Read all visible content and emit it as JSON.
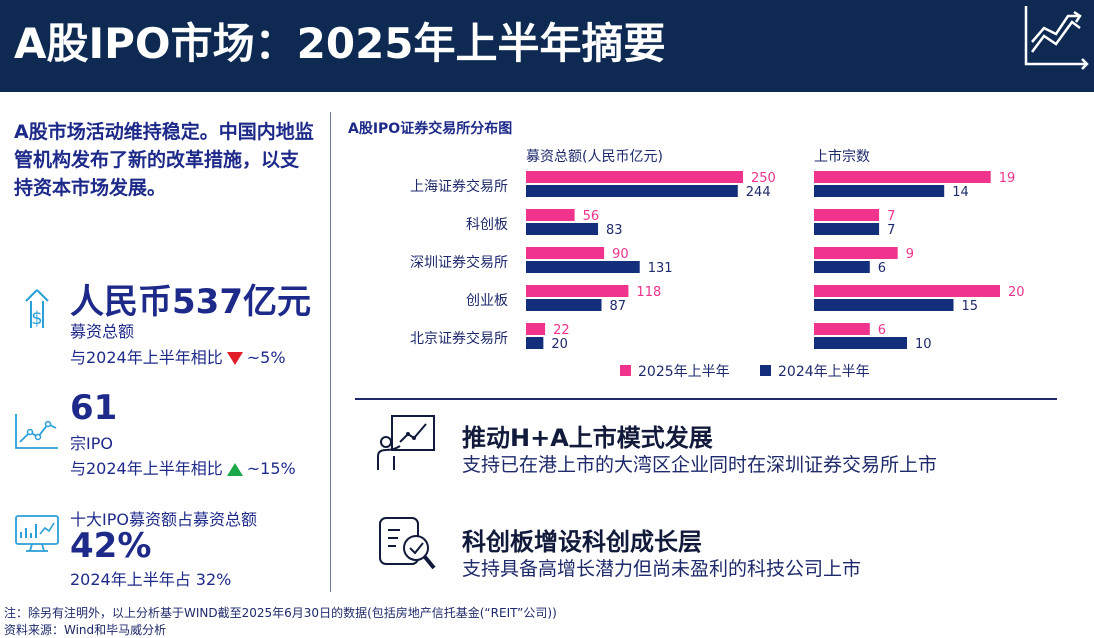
{
  "header": {
    "title": "A股IPO市场：2025年上半年摘要",
    "icon": "line-chart-icon"
  },
  "intro": {
    "text": "A股市场活动维持稳定。中国内地监管机构发布了新的改革措施，以支持资本市场发展。"
  },
  "stats": {
    "proceeds": {
      "value": "人民币537亿元",
      "label": "募资总额",
      "compare_prefix": "与2024年上半年相比",
      "direction": "down",
      "compare_value": "~5%",
      "icon": "money-up-arrow-icon"
    },
    "count": {
      "value": "61",
      "label": "宗IPO",
      "compare_prefix": "与2024年上半年相比",
      "direction": "up",
      "compare_value": "~15%",
      "icon": "trend-line-icon"
    },
    "top10": {
      "label": "十大IPO募资额占募资总额",
      "value": "42%",
      "compare": "2024年上半年占 32%",
      "icon": "monitor-chart-icon"
    }
  },
  "chart_data": {
    "type": "bar",
    "title": "A股IPO证券交易所分布图",
    "categories": [
      "上海证券交易所",
      "科创板",
      "深圳证券交易所",
      "创业板",
      "北京证券交易所"
    ],
    "panels": [
      {
        "subtitle": "募资总额(人民币亿元)",
        "xlim": [
          0,
          250
        ],
        "series": [
          {
            "name": "2025年上半年",
            "values": [
              250,
              56,
              90,
              118,
              22
            ]
          },
          {
            "name": "2024年上半年",
            "values": [
              244,
              83,
              131,
              87,
              20
            ]
          }
        ]
      },
      {
        "subtitle": "上市宗数",
        "xlim": [
          0,
          20
        ],
        "series": [
          {
            "name": "2025年上半年",
            "values": [
              19,
              7,
              9,
              20,
              6
            ]
          },
          {
            "name": "2024年上半年",
            "values": [
              14,
              7,
              6,
              15,
              10
            ]
          }
        ]
      }
    ],
    "legend": [
      "2025年上半年",
      "2024年上半年"
    ],
    "legend_position": "bottom",
    "colors": {
      "2025年上半年": "#f0338c",
      "2024年上半年": "#132f7c"
    }
  },
  "initiatives": [
    {
      "title": "推动H+A上市模式发展",
      "desc": "支持已在港上市的大湾区企业同时在深圳证券交易所上市",
      "icon": "presenter-board-icon"
    },
    {
      "title": "科创板增设科创成长层",
      "desc": "支持具备高增长潜力但尚未盈利的科技公司上市",
      "icon": "document-magnifier-check-icon"
    }
  ],
  "footer": {
    "note": "注：除另有注明外，以上分析基于WIND截至2025年6月30日的数据(包括房地产信托基金(“REIT”公司))",
    "source": "资料来源：Wind和毕马威分析"
  }
}
